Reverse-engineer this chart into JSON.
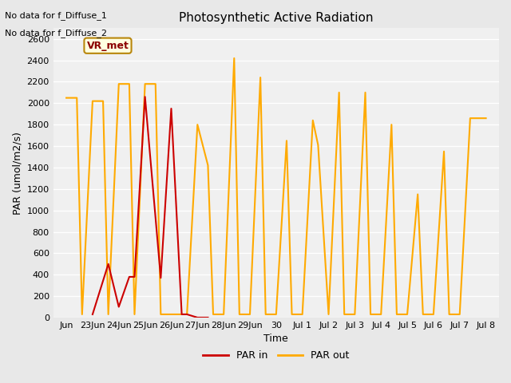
{
  "title": "Photosynthetic Active Radiation",
  "xlabel": "Time",
  "ylabel": "PAR (umol/m2/s)",
  "annotations": [
    "No data for f_Diffuse_1",
    "No data for f_Diffuse_2"
  ],
  "legend_label": "VR_met",
  "ylim": [
    0,
    2700
  ],
  "yticks": [
    0,
    200,
    400,
    600,
    800,
    1000,
    1200,
    1400,
    1600,
    1800,
    2000,
    2200,
    2400,
    2600
  ],
  "x_tick_labels": [
    "Jun",
    "23Jun",
    "24Jun",
    "25Jun",
    "26Jun",
    "27Jun",
    "28Jun",
    "29Jun",
    "30",
    "Jul 1",
    "Jul 2",
    "Jul 3",
    "Jul 4",
    "Jul 5",
    "Jul 6",
    "Jul 7",
    "Jul 8"
  ],
  "par_out_x": [
    0,
    0.4,
    0.6,
    1.0,
    1.4,
    1.6,
    2.0,
    2.4,
    2.6,
    3.0,
    3.4,
    3.6,
    4.0,
    4.4,
    4.6,
    5.0,
    5.4,
    5.6,
    6.0,
    6.4,
    6.6,
    7.0,
    7.4,
    7.6,
    8.0,
    8.4,
    8.6,
    9.0,
    9.4,
    9.6,
    10.0,
    10.4,
    10.6,
    11.0,
    11.4,
    11.6,
    12.0,
    12.4,
    12.6,
    13.0,
    13.4,
    13.6,
    14.0,
    14.4,
    14.6,
    15.0,
    15.4,
    15.6,
    16.0
  ],
  "par_out_y": [
    2050,
    2050,
    30,
    2020,
    2020,
    30,
    2180,
    2180,
    30,
    2180,
    2180,
    30,
    30,
    30,
    30,
    1800,
    1420,
    30,
    30,
    2420,
    30,
    30,
    2240,
    30,
    30,
    1650,
    30,
    30,
    1840,
    1610,
    30,
    2100,
    30,
    30,
    2100,
    30,
    30,
    1800,
    30,
    30,
    1150,
    30,
    30,
    1550,
    30,
    30,
    1860,
    1860,
    1860
  ],
  "par_in_x": [
    1.0,
    1.6,
    2.0,
    2.4,
    2.6,
    3.0,
    3.6,
    4.0,
    4.4,
    4.6,
    5.0,
    5.4
  ],
  "par_in_y": [
    30,
    500,
    100,
    380,
    380,
    2060,
    370,
    1950,
    30,
    30,
    0,
    0
  ],
  "par_in_color": "#cc0000",
  "par_out_color": "#ffaa00",
  "bg_color": "#e8e8e8",
  "plot_bg_color": "#f0f0f0",
  "grid_color": "#ffffff",
  "title_fontsize": 11,
  "axis_fontsize": 9,
  "tick_fontsize": 8
}
